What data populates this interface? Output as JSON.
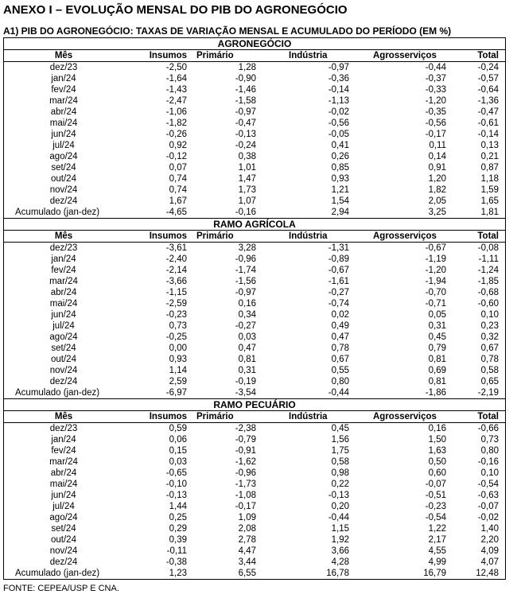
{
  "title": "ANEXO I – EVOLUÇÃO MENSAL DO PIB DO AGRONEGÓCIO",
  "subtitle": "A1) PIB DO AGRONEGÓCIO: TAXAS DE VARIAÇÃO MENSAL E ACUMULADO DO PERÍODO (EM %)",
  "columns": [
    "Mês",
    "Insumos",
    "Primário",
    "Indústria",
    "Agrosserviços",
    "Total"
  ],
  "sections": [
    {
      "name": "AGRONEGÓCIO",
      "rows": [
        [
          "dez/23",
          "-2,50",
          "1,28",
          "-0,97",
          "-0,44",
          "-0,24"
        ],
        [
          "jan/24",
          "-1,64",
          "-0,90",
          "-0,36",
          "-0,37",
          "-0,57"
        ],
        [
          "fev/24",
          "-1,43",
          "-1,46",
          "-0,14",
          "-0,33",
          "-0,64"
        ],
        [
          "mar/24",
          "-2,47",
          "-1,58",
          "-1,13",
          "-1,20",
          "-1,36"
        ],
        [
          "abr/24",
          "-1,06",
          "-0,97",
          "-0,02",
          "-0,35",
          "-0,47"
        ],
        [
          "mai/24",
          "-1,82",
          "-0,47",
          "-0,56",
          "-0,56",
          "-0,61"
        ],
        [
          "jun/24",
          "-0,26",
          "-0,13",
          "-0,05",
          "-0,17",
          "-0,14"
        ],
        [
          "jul/24",
          "0,92",
          "-0,24",
          "0,41",
          "0,11",
          "0,13"
        ],
        [
          "ago/24",
          "-0,12",
          "0,38",
          "0,26",
          "0,14",
          "0,21"
        ],
        [
          "set/24",
          "0,07",
          "1,01",
          "0,85",
          "0,91",
          "0,87"
        ],
        [
          "out/24",
          "0,74",
          "1,47",
          "0,93",
          "1,20",
          "1,18"
        ],
        [
          "nov/24",
          "0,74",
          "1,73",
          "1,21",
          "1,82",
          "1,59"
        ],
        [
          "dez/24",
          "1,67",
          "1,07",
          "1,54",
          "2,05",
          "1,65"
        ],
        [
          "Acumulado  (jan-dez)",
          "-4,65",
          "-0,16",
          "2,94",
          "3,25",
          "1,81"
        ]
      ]
    },
    {
      "name": "RAMO AGRÍCOLA",
      "rows": [
        [
          "dez/23",
          "-3,61",
          "3,28",
          "-1,31",
          "-0,67",
          "-0,08"
        ],
        [
          "jan/24",
          "-2,40",
          "-0,96",
          "-0,89",
          "-1,19",
          "-1,11"
        ],
        [
          "fev/24",
          "-2,14",
          "-1,74",
          "-0,67",
          "-1,20",
          "-1,24"
        ],
        [
          "mar/24",
          "-3,66",
          "-1,56",
          "-1,61",
          "-1,94",
          "-1,85"
        ],
        [
          "abr/24",
          "-1,15",
          "-0,97",
          "-0,27",
          "-0,70",
          "-0,68"
        ],
        [
          "mai/24",
          "-2,59",
          "0,16",
          "-0,74",
          "-0,71",
          "-0,60"
        ],
        [
          "jun/24",
          "-0,23",
          "0,34",
          "0,02",
          "0,05",
          "0,10"
        ],
        [
          "jul/24",
          "0,73",
          "-0,27",
          "0,49",
          "0,31",
          "0,23"
        ],
        [
          "ago/24",
          "-0,25",
          "0,03",
          "0,47",
          "0,45",
          "0,32"
        ],
        [
          "set/24",
          "0,00",
          "0,47",
          "0,78",
          "0,79",
          "0,67"
        ],
        [
          "out/24",
          "0,93",
          "0,81",
          "0,67",
          "0,81",
          "0,78"
        ],
        [
          "nov/24",
          "1,14",
          "0,31",
          "0,55",
          "0,69",
          "0,58"
        ],
        [
          "dez/24",
          "2,59",
          "-0,19",
          "0,80",
          "0,81",
          "0,65"
        ],
        [
          "Acumulado  (jan-dez)",
          "-6,97",
          "-3,54",
          "-0,44",
          "-1,86",
          "-2,19"
        ]
      ]
    },
    {
      "name": "RAMO PECUÁRIO",
      "rows": [
        [
          "dez/23",
          "0,59",
          "-2,38",
          "0,45",
          "0,16",
          "-0,66"
        ],
        [
          "jan/24",
          "0,06",
          "-0,79",
          "1,56",
          "1,50",
          "0,73"
        ],
        [
          "fev/24",
          "0,15",
          "-0,91",
          "1,75",
          "1,63",
          "0,80"
        ],
        [
          "mar/24",
          "0,03",
          "-1,62",
          "0,58",
          "0,50",
          "-0,16"
        ],
        [
          "abr/24",
          "-0,65",
          "-0,96",
          "0,98",
          "0,60",
          "0,10"
        ],
        [
          "mai/24",
          "-0,10",
          "-1,73",
          "0,22",
          "-0,07",
          "-0,54"
        ],
        [
          "jun/24",
          "-0,13",
          "-1,08",
          "-0,13",
          "-0,51",
          "-0,63"
        ],
        [
          "jul/24",
          "1,44",
          "-0,17",
          "0,20",
          "-0,23",
          "-0,07"
        ],
        [
          "ago/24",
          "0,25",
          "1,09",
          "-0,44",
          "-0,54",
          "-0,02"
        ],
        [
          "set/24",
          "0,29",
          "2,08",
          "1,15",
          "1,22",
          "1,40"
        ],
        [
          "out/24",
          "0,39",
          "2,78",
          "1,92",
          "2,17",
          "2,20"
        ],
        [
          "nov/24",
          "-0,11",
          "4,47",
          "3,66",
          "4,55",
          "4,09"
        ],
        [
          "dez/24",
          "-0,38",
          "3,44",
          "4,28",
          "4,99",
          "4,07"
        ],
        [
          "Acumulado  (jan-dez)",
          "1,23",
          "6,55",
          "16,78",
          "16,79",
          "12,48"
        ]
      ]
    }
  ],
  "source": "FONTE: CEPEA/USP E CNA."
}
